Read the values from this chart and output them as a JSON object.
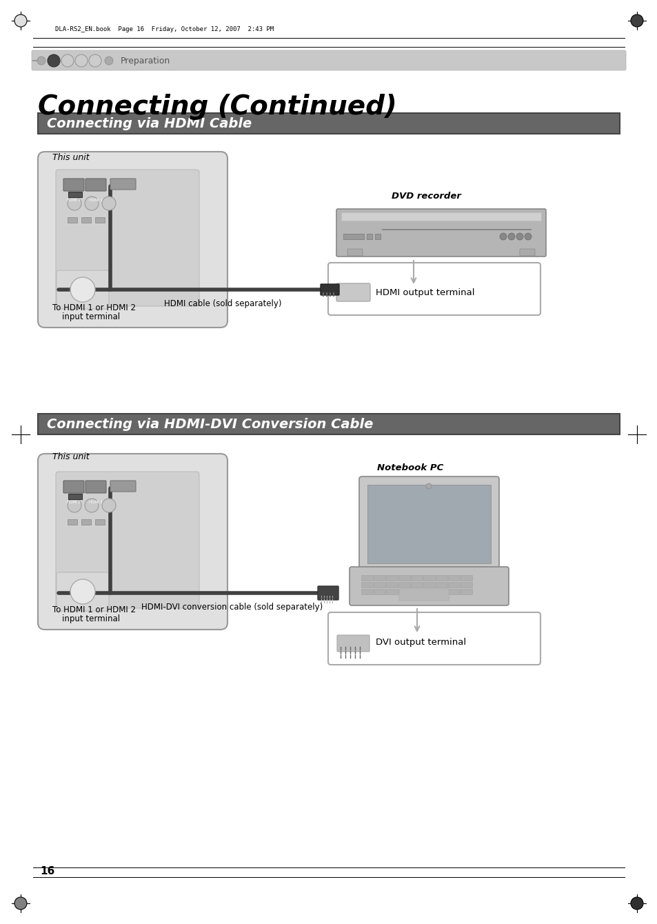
{
  "page_bg": "#ffffff",
  "title_main": "Connecting (Continued)",
  "section1_title": "Connecting via HDMI Cable",
  "section2_title": "Connecting via HDMI-DVI Conversion Cable",
  "section_title_bg": "#666666",
  "section_title_color": "#ffffff",
  "header_text": "DLA-RS2_EN.book  Page 16  Friday, October 12, 2007  2:43 PM",
  "breadcrumb_text": "Preparation",
  "page_number": "16",
  "this_unit_label": "This unit",
  "hdmi_cable_label": "HDMI cable (sold separately)",
  "hdmi_input_label_line1": "To HDMI 1 or HDMI 2",
  "hdmi_input_label_line2": "input terminal",
  "hdmi_output_label": "HDMI output terminal",
  "dvd_recorder_label": "DVD recorder",
  "dvi_cable_label": "HDMI-DVI conversion cable (sold separately)",
  "dvi_input_label_line1": "To HDMI 1 or HDMI 2",
  "dvi_input_label_line2": "input terminal",
  "dvi_output_label": "DVI output terminal",
  "notebook_label": "Notebook PC"
}
